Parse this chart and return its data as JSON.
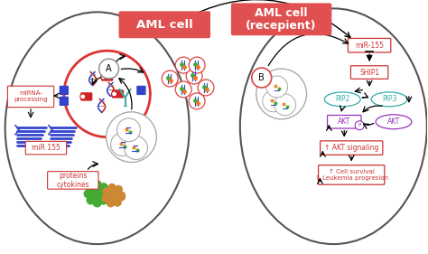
{
  "bg_color": "#ffffff",
  "left_cell_label": "AML cell",
  "right_cell_label": "AML cell\n(recepient)",
  "label_bg": "#e05050",
  "cell_border": "#555555",
  "nucleus_border": "#d44",
  "box_red": "#cc3333",
  "box_purple": "#9933bb",
  "box_teal": "#33aaaa",
  "text_red": "#cc3333",
  "text_purple": "#9933bb",
  "text_teal": "#33aaaa",
  "dna_red": "#cc2222",
  "dna_blue": "#3344cc",
  "green_blob": "#44aa33",
  "orange_blob": "#cc8833",
  "vesicle_border": "#dd4444",
  "labels": {
    "miRNA_processing": "miRNA-\nprocessing",
    "miR155": "miR 155",
    "proteins_cytokines": "proteins\ncytokines",
    "A_label": "A",
    "B_label": "B",
    "miR155_box": "miR-155",
    "SHIP1": "SHIP1",
    "PIP2": "PIP2",
    "PIP3": "PIP3",
    "AKT_left": "AKT",
    "P_label": "P",
    "AKT_right": "AKT",
    "AKT_signaling": "↑ AKT signaling",
    "cell_survival": "↑ Cell survival\n↑ Leukemia progresion"
  }
}
